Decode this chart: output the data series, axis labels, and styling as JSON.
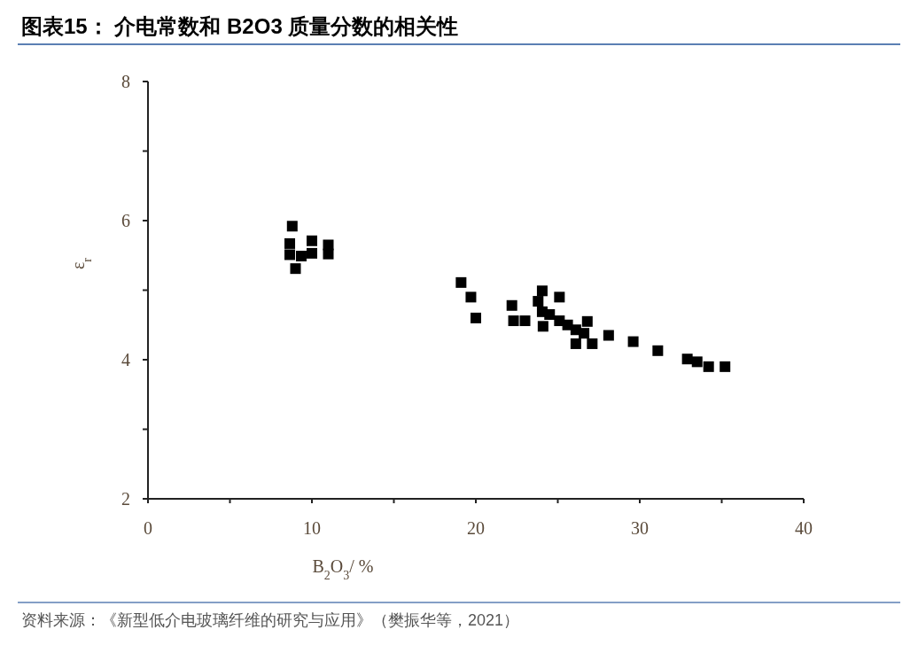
{
  "chart_data": {
    "type": "scatter",
    "title": "图表15：  介电常数和 B2O3 质量分数的相关性",
    "xlabel": "B$_{2}$O$_{3}$/ %",
    "ylabel": "ε$_{r}$",
    "marker": "square",
    "grid": false,
    "xlim": [
      0,
      40
    ],
    "ylim": [
      2,
      8
    ],
    "xticks": [
      0,
      {
        "value": 5,
        "label": null
      },
      10,
      {
        "value": 15,
        "label": null
      },
      20,
      {
        "value": 25,
        "label": null
      },
      30,
      {
        "value": 35,
        "label": null
      },
      40
    ],
    "yticks": [
      2,
      {
        "value": 3,
        "label": null
      },
      4,
      {
        "value": 5,
        "label": null
      },
      6,
      {
        "value": 7,
        "label": null
      },
      8
    ],
    "series": [
      {
        "color": "#000000",
        "x": [
          8.8,
          8.65,
          8.65,
          9.0,
          10.0,
          10.0,
          9.35,
          11.0,
          11.0,
          19.1,
          19.7,
          20.0,
          22.2,
          22.3,
          23.0,
          24.05,
          23.8,
          24.05,
          24.1,
          24.5,
          25.1,
          25.1,
          25.6,
          26.1,
          26.1,
          26.8,
          26.6,
          27.1,
          28.1,
          29.6,
          31.1,
          32.9,
          33.5,
          34.2,
          35.2
        ],
        "values": [
          5.92,
          5.51,
          5.67,
          5.31,
          5.71,
          5.53,
          5.49,
          5.65,
          5.52,
          5.11,
          4.9,
          4.6,
          4.78,
          4.56,
          4.56,
          4.99,
          4.84,
          4.69,
          4.48,
          4.65,
          4.9,
          4.56,
          4.5,
          4.43,
          4.23,
          4.55,
          4.38,
          4.23,
          4.35,
          4.26,
          4.13,
          4.01,
          3.97,
          3.9,
          3.9
        ]
      }
    ],
    "annotations": [
      "资料来源：《新型低介电玻璃纤维的研究与应用》（樊振华等，2021）"
    ]
  }
}
